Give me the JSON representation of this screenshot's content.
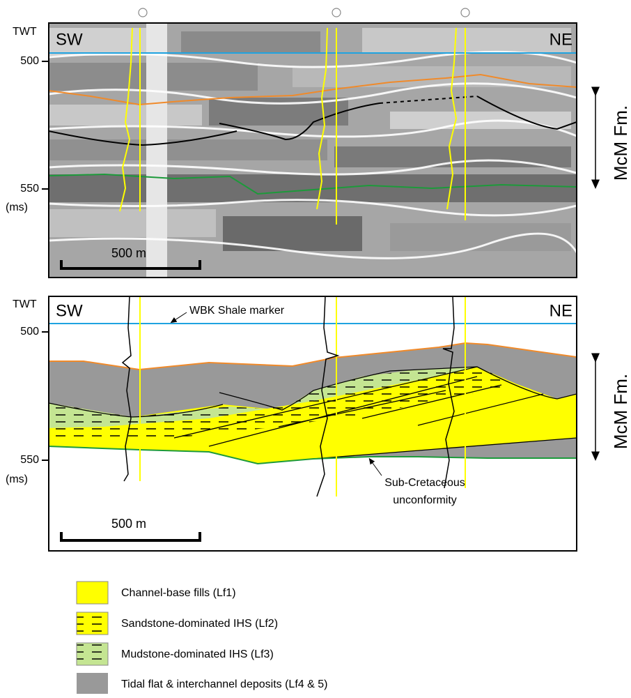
{
  "top_panel": {
    "axis_label": "TWT",
    "left": "SW",
    "right": "NE",
    "tick_upper": "500",
    "tick_lower": "550",
    "unit": "(ms)",
    "scale": "500 m",
    "formation": "McM Fm."
  },
  "bottom_panel": {
    "axis_label": "TWT",
    "left": "SW",
    "right": "NE",
    "tick_upper": "500",
    "tick_lower": "550",
    "unit": "(ms)",
    "scale": "500 m",
    "formation": "McM Fm.",
    "marker": "WBK Shale marker",
    "unconformity": [
      "Sub-Cretaceous",
      "unconformity"
    ]
  },
  "legend": [
    {
      "label": "Channel-base fills (Lf1)"
    },
    {
      "label": "Sandstone-dominated IHS (Lf2)"
    },
    {
      "label": "Mudstone-dominated IHS (Lf3)"
    },
    {
      "label": "Tidal flat & interchannel deposits (Lf4 & 5)"
    }
  ]
}
